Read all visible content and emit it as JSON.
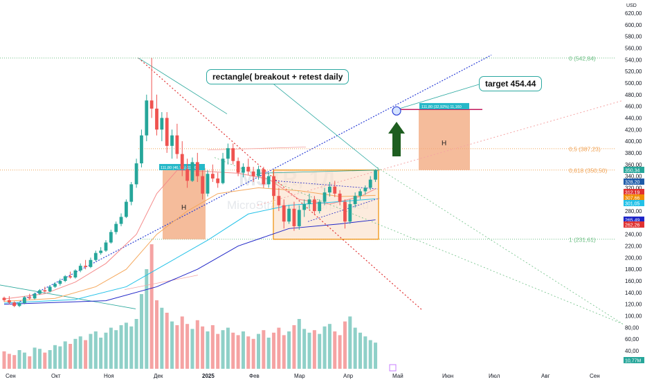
{
  "chart_data": {
    "type": "candlestick",
    "currency": "USD",
    "watermark": {
      "symbol": "MSTR, 1Д",
      "name": "MicroStrategy Incorporated"
    },
    "y_axis": {
      "min": 20,
      "max": 630,
      "ticks": [
        "620,00",
        "600,00",
        "580,00",
        "560,00",
        "540,00",
        "520,00",
        "500,00",
        "480,00",
        "460,00",
        "440,00",
        "420,00",
        "400,00",
        "380,00",
        "360,00",
        "340,00",
        "320,00",
        "300,00",
        "280,00",
        "260,00",
        "240,00",
        "220,00",
        "200,00",
        "180,00",
        "160,00",
        "140,00",
        "120,00",
        "100,00",
        "80,00",
        "60,00",
        "40,00"
      ],
      "price_labels": [
        {
          "text": "350,34",
          "color": "#26a69a"
        },
        {
          "text": "328,20",
          "color": "#1e5ba8"
        },
        {
          "text": "312,19",
          "color": "#e03131"
        },
        {
          "text": "307,66",
          "color": "#f08c00"
        },
        {
          "text": "301,05",
          "color": "#22c1e8"
        },
        {
          "text": "265,49",
          "color": "#1d24c7"
        },
        {
          "text": "262,26",
          "color": "#e03131"
        },
        {
          "text": "10,77M",
          "color": "#26a69a"
        }
      ]
    },
    "x_axis": {
      "labels": [
        "Сен",
        "Окт",
        "Ноя",
        "Дек",
        "2025",
        "Фев",
        "Мар",
        "Апр",
        "Май",
        "Июн",
        "Июл",
        "Авг",
        "Сен"
      ]
    },
    "fib_levels": [
      {
        "label": "0 (542,84)",
        "value": 542.84,
        "color": "#6cbf84"
      },
      {
        "label": "0,5 (387,23)",
        "value": 387.23,
        "color": "#f0a050"
      },
      {
        "label": "0,618 (350,50)",
        "value": 350.5,
        "color": "#f0a050"
      },
      {
        "label": "1 (231,61)",
        "value": 231.61,
        "color": "#6cbf84"
      }
    ],
    "annotations": {
      "callout_pattern": "rectangle( breakout + retest daily",
      "callout_target": "target 454.44",
      "measure_label": "111,80 (32,92%) 11,160",
      "measure_label_left": "111,80 (46,7%) 11,160",
      "box_letter": "H",
      "target_price": 454.44
    },
    "candles": [
      [
        131,
        133,
        124,
        127
      ],
      [
        127,
        134,
        120,
        123
      ],
      [
        123,
        125,
        115,
        117
      ],
      [
        117,
        124,
        115,
        122
      ],
      [
        122,
        134,
        120,
        132
      ],
      [
        132,
        138,
        128,
        130
      ],
      [
        130,
        140,
        128,
        138
      ],
      [
        138,
        146,
        136,
        144
      ],
      [
        144,
        150,
        140,
        142
      ],
      [
        142,
        152,
        140,
        150
      ],
      [
        150,
        158,
        148,
        155
      ],
      [
        155,
        164,
        152,
        160
      ],
      [
        160,
        170,
        158,
        168
      ],
      [
        168,
        176,
        164,
        166
      ],
      [
        166,
        180,
        164,
        178
      ],
      [
        178,
        190,
        175,
        186
      ],
      [
        186,
        196,
        180,
        184
      ],
      [
        184,
        200,
        182,
        196
      ],
      [
        196,
        212,
        194,
        208
      ],
      [
        208,
        218,
        205,
        212
      ],
      [
        212,
        230,
        210,
        226
      ],
      [
        226,
        248,
        224,
        244
      ],
      [
        244,
        262,
        240,
        258
      ],
      [
        258,
        276,
        254,
        270
      ],
      [
        270,
        300,
        268,
        296
      ],
      [
        296,
        330,
        290,
        326
      ],
      [
        326,
        370,
        320,
        362
      ],
      [
        362,
        420,
        355,
        410
      ],
      [
        410,
        480,
        400,
        470
      ],
      [
        470,
        543,
        440,
        456
      ],
      [
        456,
        480,
        410,
        420
      ],
      [
        420,
        450,
        400,
        440
      ],
      [
        440,
        450,
        380,
        392
      ],
      [
        392,
        420,
        370,
        410
      ],
      [
        410,
        430,
        370,
        378
      ],
      [
        378,
        400,
        340,
        352
      ],
      [
        352,
        370,
        320,
        332
      ],
      [
        332,
        372,
        330,
        364
      ],
      [
        364,
        380,
        330,
        340
      ],
      [
        340,
        350,
        300,
        310
      ],
      [
        310,
        350,
        305,
        344
      ],
      [
        344,
        360,
        330,
        336
      ],
      [
        336,
        346,
        320,
        328
      ],
      [
        328,
        380,
        326,
        370
      ],
      [
        370,
        396,
        360,
        388
      ],
      [
        388,
        396,
        360,
        366
      ],
      [
        366,
        372,
        340,
        346
      ],
      [
        346,
        362,
        338,
        356
      ],
      [
        356,
        370,
        342,
        348
      ],
      [
        348,
        356,
        330,
        340
      ],
      [
        340,
        358,
        334,
        352
      ],
      [
        352,
        356,
        320,
        326
      ],
      [
        326,
        346,
        320,
        340
      ],
      [
        340,
        350,
        300,
        306
      ],
      [
        306,
        320,
        280,
        290
      ],
      [
        290,
        300,
        250,
        262
      ],
      [
        262,
        290,
        258,
        284
      ],
      [
        284,
        296,
        246,
        254
      ],
      [
        254,
        290,
        248,
        282
      ],
      [
        282,
        300,
        270,
        292
      ],
      [
        292,
        310,
        284,
        300
      ],
      [
        300,
        306,
        274,
        280
      ],
      [
        280,
        300,
        276,
        296
      ],
      [
        296,
        320,
        290,
        312
      ],
      [
        312,
        330,
        305,
        322
      ],
      [
        322,
        332,
        304,
        310
      ],
      [
        310,
        316,
        290,
        296
      ],
      [
        296,
        300,
        250,
        262
      ],
      [
        262,
        300,
        258,
        292
      ],
      [
        292,
        312,
        286,
        306
      ],
      [
        306,
        318,
        300,
        314
      ],
      [
        314,
        324,
        308,
        320
      ],
      [
        320,
        340,
        316,
        334
      ],
      [
        334,
        352,
        330,
        350
      ]
    ],
    "volumes": [
      28,
      24,
      22,
      30,
      26,
      20,
      34,
      32,
      26,
      30,
      38,
      36,
      44,
      40,
      48,
      52,
      46,
      56,
      60,
      50,
      58,
      66,
      62,
      70,
      74,
      68,
      80,
      120,
      160,
      200,
      110,
      98,
      90,
      76,
      70,
      84,
      72,
      64,
      78,
      68,
      60,
      70,
      56,
      62,
      66,
      58,
      54,
      60,
      52,
      48,
      56,
      62,
      50,
      58,
      66,
      54,
      60,
      70,
      80,
      64,
      58,
      62,
      56,
      68,
      72,
      60,
      54,
      76,
      84,
      66,
      58,
      52,
      46,
      42
    ],
    "indicator_lines": [
      {
        "name": "MA20",
        "color": "#f58a8a",
        "points": [
          [
            0,
            129
          ],
          [
            8,
            138
          ],
          [
            14,
            158
          ],
          [
            20,
            190
          ],
          [
            26,
            240
          ],
          [
            30,
            310
          ],
          [
            34,
            350
          ],
          [
            40,
            348
          ],
          [
            46,
            345
          ],
          [
            52,
            335
          ],
          [
            58,
            300
          ],
          [
            64,
            292
          ],
          [
            70,
            305
          ],
          [
            73,
            318
          ]
        ]
      },
      {
        "name": "MA50",
        "color": "#f5a85c",
        "points": [
          [
            0,
            125
          ],
          [
            10,
            130
          ],
          [
            18,
            150
          ],
          [
            24,
            180
          ],
          [
            30,
            240
          ],
          [
            36,
            280
          ],
          [
            42,
            310
          ],
          [
            50,
            320
          ],
          [
            58,
            315
          ],
          [
            66,
            305
          ],
          [
            73,
            307
          ]
        ]
      },
      {
        "name": "MA100",
        "color": "#22c1e8",
        "points": [
          [
            0,
            122
          ],
          [
            14,
            128
          ],
          [
            24,
            150
          ],
          [
            32,
            190
          ],
          [
            40,
            230
          ],
          [
            48,
            275
          ],
          [
            56,
            290
          ],
          [
            64,
            295
          ],
          [
            73,
            301
          ]
        ]
      },
      {
        "name": "MA200",
        "color": "#1d24c7",
        "points": [
          [
            0,
            120
          ],
          [
            20,
            126
          ],
          [
            30,
            150
          ],
          [
            38,
            180
          ],
          [
            46,
            220
          ],
          [
            56,
            250
          ],
          [
            66,
            258
          ],
          [
            73,
            265
          ]
        ]
      }
    ]
  }
}
